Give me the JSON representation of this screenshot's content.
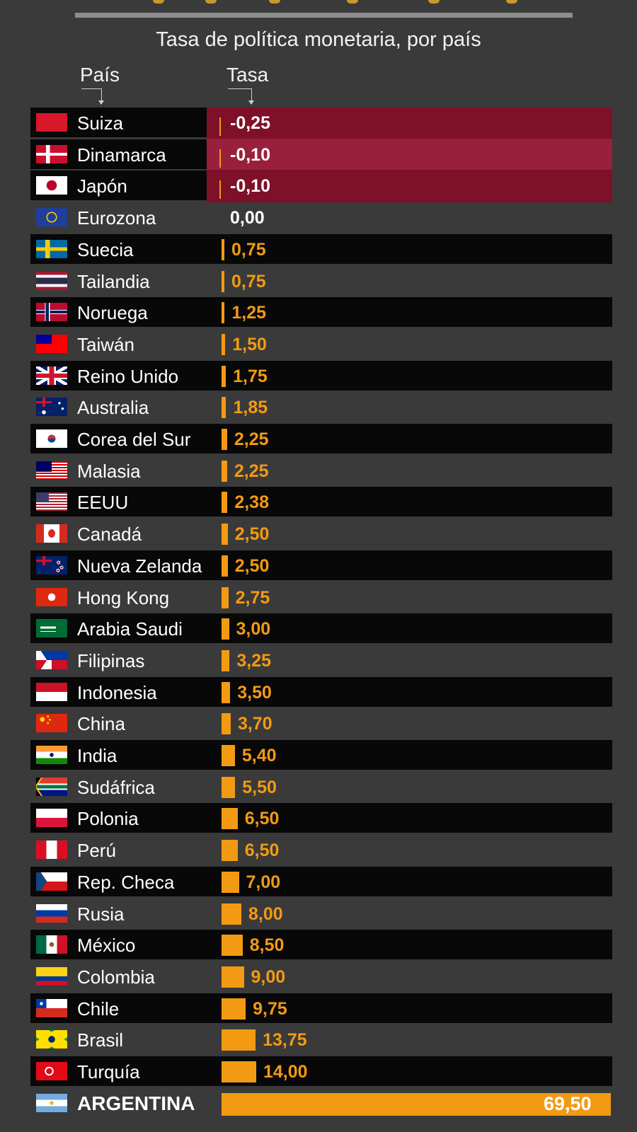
{
  "subtitle": "Tasa de política monetaria, por país",
  "column_headers": {
    "country": "País",
    "rate": "Tasa"
  },
  "colors": {
    "background": "#3a3a3a",
    "row_band": "#080808",
    "negative_band_1": "#7e1028",
    "negative_band_2": "#98203d",
    "bar": "#f39a13"
  },
  "chart_data": {
    "type": "bar",
    "orientation": "horizontal",
    "title": "Tasa de política monetaria, por país",
    "categories": [
      "Suiza",
      "Dinamarca",
      "Japón",
      "Eurozona",
      "Suecia",
      "Tailandia",
      "Noruega",
      "Taiwán",
      "Reino Unido",
      "Australia",
      "Corea del Sur",
      "Malasia",
      "EEUU",
      "Canadá",
      "Nueva Zelanda",
      "Hong Kong",
      "Arabia Saudi",
      "Filipinas",
      "Indonesia",
      "China",
      "India",
      "Sudáfrica",
      "Polonia",
      "Perú",
      "Rep. Checa",
      "Rusia",
      "México",
      "Colombia",
      "Chile",
      "Brasil",
      "Turquía",
      "ARGENTINA"
    ],
    "values": [
      -0.25,
      -0.1,
      -0.1,
      0.0,
      0.75,
      0.75,
      1.25,
      1.5,
      1.75,
      1.85,
      2.25,
      2.25,
      2.38,
      2.5,
      2.5,
      2.75,
      3.0,
      3.25,
      3.5,
      3.7,
      5.4,
      5.5,
      6.5,
      6.5,
      7.0,
      8.0,
      8.5,
      9.0,
      9.75,
      13.75,
      14.0,
      69.5
    ],
    "value_labels": [
      "-0,25",
      "-0,10",
      "-0,10",
      "0,00",
      "0,75",
      "0,75",
      "1,25",
      "1,50",
      "1,75",
      "1,85",
      "2,25",
      "2,25",
      "2,38",
      "2,50",
      "2,50",
      "2,75",
      "3,00",
      "3,25",
      "3,50",
      "3,70",
      "5,40",
      "5,50",
      "6,50",
      "6,50",
      "7,00",
      "8,00",
      "8,50",
      "9,00",
      "9,75",
      "13,75",
      "14,00",
      "69,50"
    ],
    "flags": [
      "switzerland-flag",
      "denmark-flag",
      "japan-flag",
      "eu-flag",
      "sweden-flag",
      "thailand-flag",
      "norway-flag",
      "taiwan-flag",
      "uk-flag",
      "australia-flag",
      "south-korea-flag",
      "malaysia-flag",
      "usa-flag",
      "canada-flag",
      "new-zealand-flag",
      "hong-kong-flag",
      "saudi-arabia-flag",
      "philippines-flag",
      "indonesia-flag",
      "china-flag",
      "india-flag",
      "south-africa-flag",
      "poland-flag",
      "peru-flag",
      "czech-flag",
      "russia-flag",
      "mexico-flag",
      "colombia-flag",
      "chile-flag",
      "brazil-flag",
      "turkey-flag",
      "argentina-flag"
    ],
    "highlight": "ARGENTINA",
    "xlabel": "Tasa",
    "ylabel": "País",
    "grid": false,
    "legend": "none"
  }
}
